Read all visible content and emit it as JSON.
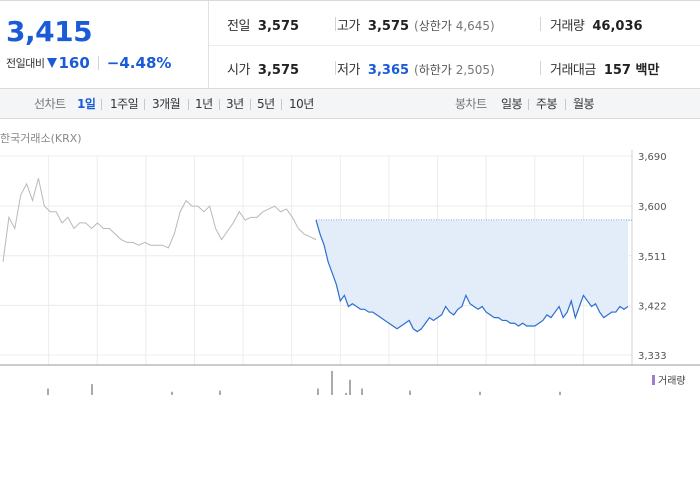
{
  "quote": {
    "price": "3,415",
    "change_label": "전일대비",
    "change_value": "160",
    "change_rate": "−4.48%",
    "down_color": "#1a5bd8"
  },
  "stats": {
    "prev_close": {
      "label": "전일",
      "value": "3,575"
    },
    "high": {
      "label": "고가",
      "value": "3,575",
      "limit_label": "상한가",
      "limit_value": "4,645"
    },
    "volume": {
      "label": "거래량",
      "value": "46,036"
    },
    "open": {
      "label": "시가",
      "value": "3,575"
    },
    "low": {
      "label": "저가",
      "value": "3,365",
      "limit_label": "하한가",
      "limit_value": "2,505"
    },
    "trade_amount": {
      "label": "거래대금",
      "value": "157 백만"
    }
  },
  "tabs": {
    "line_section": "선차트",
    "line_items": [
      "1일",
      "1주일",
      "3개월",
      "1년",
      "3년",
      "5년",
      "10년"
    ],
    "active_index": 0,
    "candle_section": "봉차트",
    "candle_items": [
      "일봉",
      "주봉",
      "월봉"
    ]
  },
  "chart_source": "한국거래소(KRX)",
  "volume_label": "거래량",
  "icons": {
    "down": "down-triangle-icon",
    "volume_legend": "volume-legend-marker-icon"
  },
  "colors": {
    "today_line": "#2c6fd0",
    "today_fill": "#e3ecf9",
    "prev_line": "#b8b8b8",
    "grid": "#ececec",
    "volume": "#555555"
  },
  "chart_data": {
    "type": "line",
    "title": "",
    "xlabel": "",
    "ylabel": "",
    "y_ticks": [
      "3,690",
      "3,600",
      "3,511",
      "3,422",
      "3,333"
    ],
    "ylim": [
      3333,
      3690
    ],
    "prev_close": 3575,
    "series": [
      {
        "name": "",
        "style": "previous-day",
        "values": [
          3500,
          3580,
          3560,
          3620,
          3640,
          3610,
          3650,
          3600,
          3590,
          3590,
          3570,
          3580,
          3560,
          3570,
          3570,
          3560,
          3570,
          3560,
          3560,
          3550,
          3540,
          3535,
          3535,
          3530,
          3535,
          3530,
          3530,
          3530,
          3525,
          3550,
          3590,
          3610,
          3600,
          3600,
          3590,
          3600,
          3560,
          3540,
          3555,
          3570,
          3590,
          3575,
          3580,
          3580,
          3590,
          3595,
          3600,
          3590,
          3595,
          3580,
          3560,
          3550,
          3545,
          3540
        ]
      },
      {
        "name": "",
        "style": "today",
        "values": [
          3575,
          3550,
          3530,
          3500,
          3480,
          3460,
          3430,
          3440,
          3420,
          3425,
          3420,
          3415,
          3415,
          3410,
          3410,
          3405,
          3400,
          3395,
          3390,
          3385,
          3380,
          3385,
          3390,
          3395,
          3380,
          3375,
          3380,
          3390,
          3400,
          3395,
          3400,
          3405,
          3420,
          3410,
          3405,
          3415,
          3420,
          3440,
          3425,
          3420,
          3415,
          3420,
          3410,
          3405,
          3400,
          3400,
          3395,
          3395,
          3390,
          3390,
          3385,
          3390,
          3385,
          3385,
          3385,
          3390,
          3395,
          3405,
          3400,
          3410,
          3420,
          3400,
          3410,
          3430,
          3400,
          3420,
          3440,
          3430,
          3420,
          3425,
          3410,
          3400,
          3405,
          3410,
          3410,
          3420,
          3415,
          3420
        ]
      }
    ],
    "volume": [
      6,
      10,
      3,
      4,
      6,
      22,
      2,
      14,
      6,
      4,
      3,
      3
    ]
  }
}
